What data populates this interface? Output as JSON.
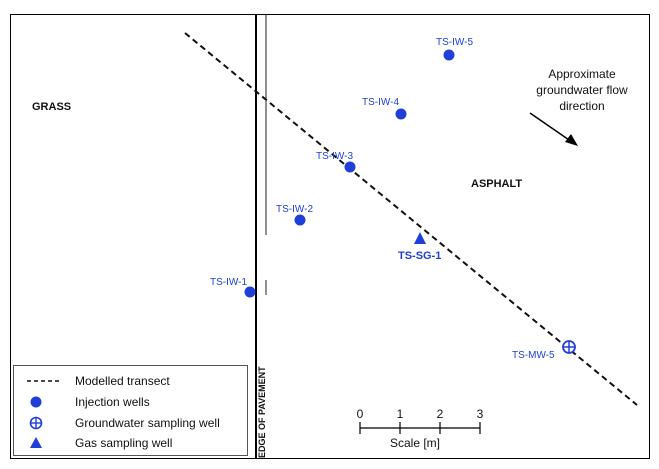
{
  "areas": {
    "grass": "GRASS",
    "asphalt": "ASPHALT",
    "pavement_edge": "EDGE OF PAVEMENT"
  },
  "flow": {
    "line1": "Approximate",
    "line2": "groundwater flow",
    "line3": "direction"
  },
  "wells": {
    "iw5": "TS-IW-5",
    "iw4": "TS-IW-4",
    "iw3": "TS-IW-3",
    "iw2": "TS-IW-2",
    "iw1": "TS-IW-1",
    "sg1": "TS-SG-1",
    "mw5": "TS-MW-5"
  },
  "legend": {
    "transect": "Modelled transect",
    "injection": "Injection wells",
    "gw_well": "Groundwater sampling well",
    "gas_well": "Gas sampling well"
  },
  "scale": {
    "t0": "0",
    "t1": "1",
    "t2": "2",
    "t3": "3",
    "label": "Scale [m]"
  },
  "colors": {
    "well_blue": "#1f3fd8",
    "line": "#111111"
  }
}
